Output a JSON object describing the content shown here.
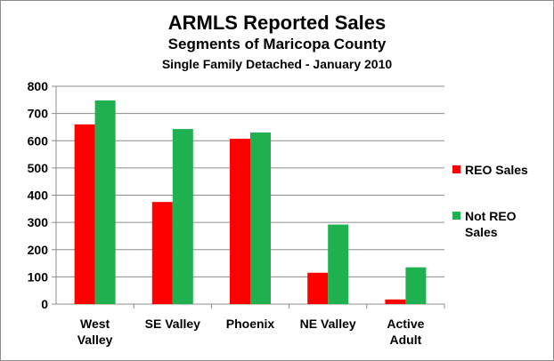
{
  "chart_data": {
    "type": "bar",
    "title": "ARMLS Reported Sales",
    "subtitle": "Segments of Maricopa County",
    "subtitle2": "Single Family Detached - January 2010",
    "xlabel": "",
    "ylabel": "",
    "ylim": [
      0,
      800
    ],
    "yticks": [
      "0",
      "100",
      "200",
      "300",
      "400",
      "500",
      "600",
      "700",
      "800"
    ],
    "categories": [
      [
        "West",
        "Valley"
      ],
      [
        "SE Valley"
      ],
      [
        "Phoenix"
      ],
      [
        "NE Valley"
      ],
      [
        "Active",
        "Adult"
      ]
    ],
    "series": [
      {
        "name": [
          "REO Sales"
        ],
        "color": "#ff0000",
        "values": [
          660,
          375,
          607,
          115,
          17
        ]
      },
      {
        "name": [
          "Not REO",
          "Sales"
        ],
        "color": "#1fb04f",
        "values": [
          748,
          643,
          630,
          292,
          135
        ]
      }
    ],
    "grid": true,
    "legend_position": "right"
  }
}
